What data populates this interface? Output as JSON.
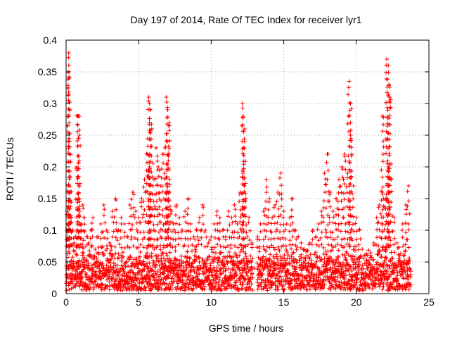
{
  "chart_data": {
    "type": "scatter",
    "title": "Day 197 of 2014, Rate Of TEC Index for receiver lyr1",
    "xlabel": "GPS time / hours",
    "ylabel": "ROTI / TECUs",
    "xlim": [
      0,
      25
    ],
    "ylim": [
      0,
      0.4
    ],
    "x_ticks": [
      0,
      5,
      10,
      15,
      20,
      25
    ],
    "x_tick_labels": [
      "0",
      "5",
      "10",
      "15",
      "20",
      "25"
    ],
    "y_ticks": [
      0,
      0.05,
      0.1,
      0.15,
      0.2,
      0.25,
      0.3,
      0.35,
      0.4
    ],
    "y_tick_labels": [
      "0",
      "0.05",
      "0.1",
      "0.15",
      "0.2",
      "0.25",
      "0.3",
      "0.35",
      "0.4"
    ],
    "grid": true,
    "marker": "+",
    "color": "#ff0000",
    "series": [
      {
        "name": "ROTI",
        "x": [
          0.02,
          0.05,
          0.1,
          0.15,
          0.2,
          0.25,
          0.3,
          0.35,
          0.45,
          0.55,
          0.65,
          0.75,
          0.85,
          0.95,
          1.05,
          1.15,
          1.25,
          1.4,
          1.55,
          1.7,
          1.85,
          2.0,
          2.2,
          2.4,
          2.6,
          2.8,
          3.0,
          3.2,
          3.4,
          3.6,
          3.8,
          4.0,
          4.2,
          4.4,
          4.6,
          4.8,
          5.0,
          5.2,
          5.4,
          5.6,
          5.75,
          5.9,
          6.05,
          6.2,
          6.35,
          6.5,
          6.65,
          6.8,
          6.95,
          7.1,
          7.25,
          7.4,
          7.6,
          7.8,
          8.0,
          8.2,
          8.4,
          8.6,
          8.8,
          9.0,
          9.2,
          9.4,
          9.6,
          9.8,
          10.0,
          10.2,
          10.4,
          10.6,
          10.8,
          11.0,
          11.2,
          11.4,
          11.6,
          11.8,
          12.0,
          12.2,
          12.4,
          12.6,
          12.8,
          13.0,
          13.2,
          13.4,
          13.6,
          13.8,
          14.0,
          14.2,
          14.4,
          14.6,
          14.8,
          15.0,
          15.2,
          15.4,
          15.6,
          15.8,
          16.0,
          16.2,
          16.4,
          16.6,
          16.8,
          17.0,
          17.2,
          17.4,
          17.6,
          17.8,
          18.0,
          18.2,
          18.4,
          18.6,
          18.8,
          19.0,
          19.2,
          19.4,
          19.6,
          19.8,
          20.0,
          20.2,
          20.4,
          20.6,
          20.8,
          21.0,
          21.2,
          21.4,
          21.6,
          21.8,
          22.0,
          22.2,
          22.4,
          22.6,
          22.8,
          23.0,
          23.2,
          23.4,
          23.6,
          0.18,
          0.2,
          0.22,
          0.8,
          0.85,
          0.9,
          5.7,
          5.75,
          5.8,
          6.9,
          7.0,
          7.1,
          12.15,
          12.2,
          12.3,
          19.5,
          19.6,
          22.1,
          22.2,
          22.25,
          22.3,
          21.8
        ],
        "y": [
          0.03,
          0.1,
          0.13,
          0.12,
          0.15,
          0.24,
          0.16,
          0.12,
          0.1,
          0.08,
          0.09,
          0.2,
          0.15,
          0.13,
          0.1,
          0.14,
          0.12,
          0.09,
          0.08,
          0.1,
          0.12,
          0.07,
          0.09,
          0.11,
          0.14,
          0.1,
          0.08,
          0.13,
          0.15,
          0.1,
          0.12,
          0.11,
          0.09,
          0.14,
          0.16,
          0.13,
          0.12,
          0.15,
          0.18,
          0.22,
          0.2,
          0.26,
          0.18,
          0.23,
          0.2,
          0.17,
          0.22,
          0.19,
          0.24,
          0.16,
          0.13,
          0.11,
          0.14,
          0.12,
          0.1,
          0.13,
          0.15,
          0.11,
          0.09,
          0.1,
          0.12,
          0.14,
          0.1,
          0.08,
          0.09,
          0.11,
          0.13,
          0.12,
          0.1,
          0.09,
          0.13,
          0.12,
          0.14,
          0.11,
          0.16,
          0.19,
          0.15,
          0.12,
          0.08,
          0.04,
          0.09,
          0.11,
          0.13,
          0.18,
          0.15,
          0.12,
          0.14,
          0.16,
          0.19,
          0.13,
          0.11,
          0.12,
          0.15,
          0.1,
          0.09,
          0.08,
          0.07,
          0.06,
          0.08,
          0.1,
          0.09,
          0.11,
          0.13,
          0.19,
          0.22,
          0.16,
          0.13,
          0.15,
          0.18,
          0.2,
          0.22,
          0.19,
          0.25,
          0.17,
          0.12,
          0.1,
          0.07,
          0.06,
          0.05,
          0.06,
          0.08,
          0.12,
          0.14,
          0.16,
          0.15,
          0.2,
          0.18,
          0.12,
          0.08,
          0.06,
          0.11,
          0.14,
          0.17,
          0.38,
          0.35,
          0.34,
          0.28,
          0.28,
          0.25,
          0.31,
          0.3,
          0.29,
          0.31,
          0.29,
          0.27,
          0.3,
          0.28,
          0.26,
          0.335,
          0.3,
          0.37,
          0.36,
          0.33,
          0.31,
          0.28
        ]
      }
    ],
    "band": {
      "description": "dense cluster of points near the baseline throughout the day",
      "x_start": 0,
      "x_end": 23.75,
      "y_low": 0.005,
      "y_high": 0.075,
      "gap_x": [
        12.85,
        13.15
      ]
    }
  }
}
